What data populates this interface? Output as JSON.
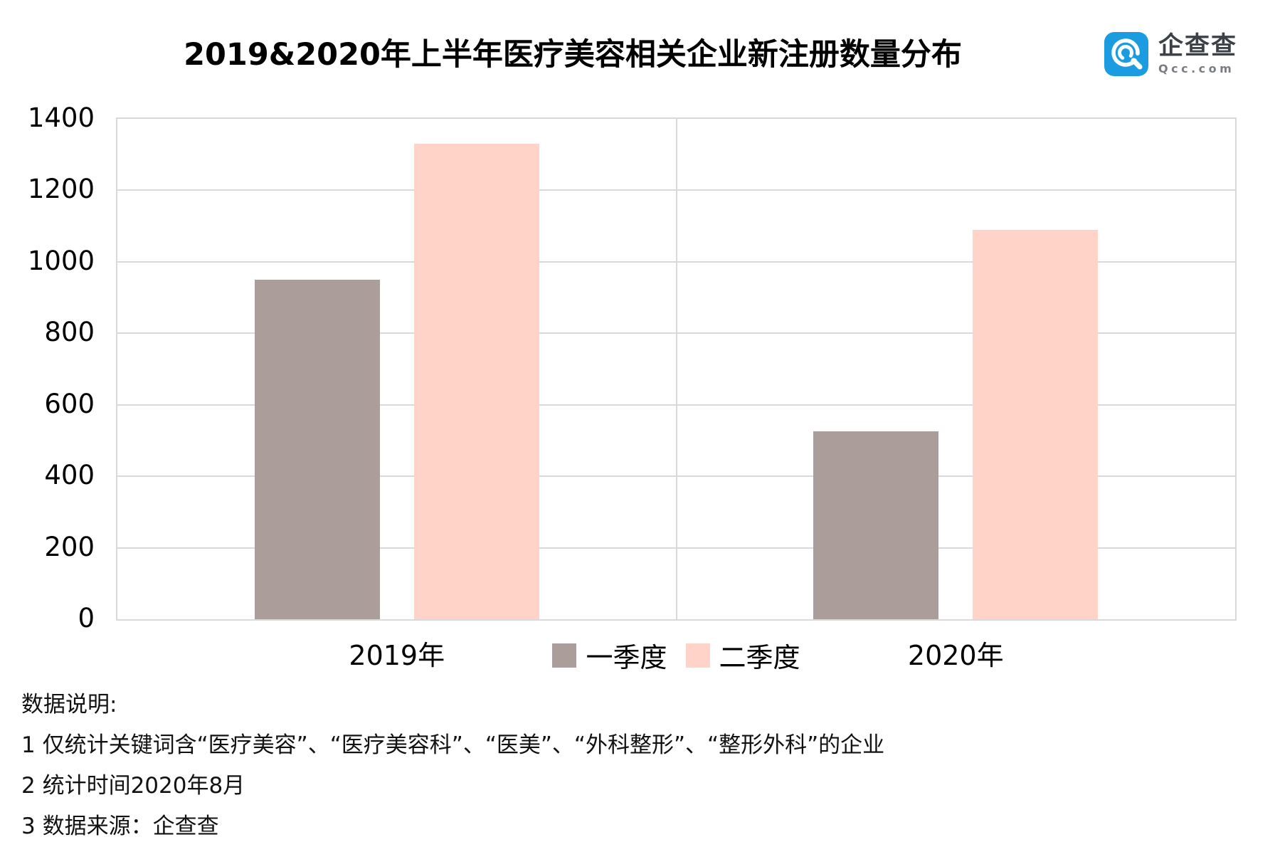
{
  "title": "2019&2020年上半年医疗美容相关企业新注册数量分布",
  "logo": {
    "icon": "qcc-magnifier-icon",
    "name_cn": "企查查",
    "domain": "Qcc.com",
    "brand_blue": "#1b9ce0"
  },
  "chart_data": {
    "type": "bar",
    "title": "2019&2020年上半年医疗美容相关企业新注册数量分布",
    "categories": [
      "2019年",
      "2020年"
    ],
    "series": [
      {
        "name": "一季度",
        "color": "#ab9d99",
        "values": [
          950,
          525
        ]
      },
      {
        "name": "二季度",
        "color": "#ffd3c7",
        "values": [
          1330,
          1090
        ]
      }
    ],
    "xlabel": "",
    "ylabel": "",
    "ylim": [
      0,
      1400
    ],
    "yticks": [
      0,
      200,
      400,
      600,
      800,
      1000,
      1200,
      1400
    ],
    "grid": "horizontal-major, center vertical divider between category groups",
    "legend_position": "bottom-center",
    "gridline_color": "#d9d9d9"
  },
  "notes": {
    "heading": "数据说明:",
    "items": [
      "1 仅统计关键词含“医疗美容”、“医疗美容科”、“医美”、“外科整形”、“整形外科”的企业",
      "2 统计时间2020年8月",
      "3 数据来源：企查查"
    ]
  }
}
